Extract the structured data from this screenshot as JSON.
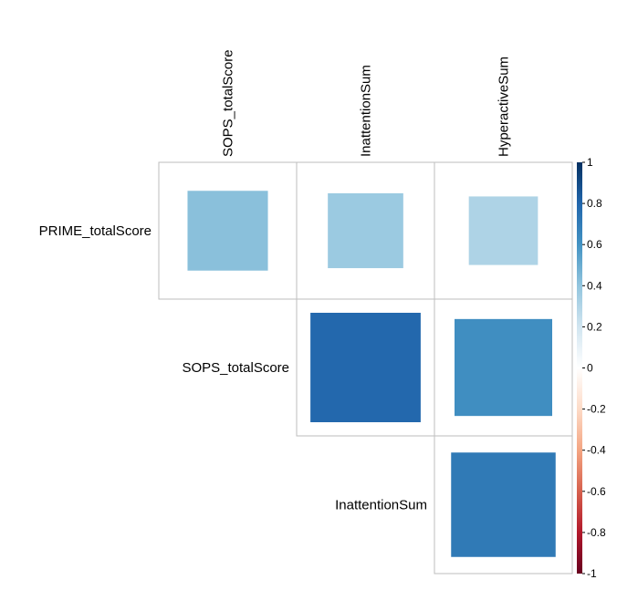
{
  "chart_data": {
    "type": "heatmap",
    "subtype": "correlation-matrix-upper-square",
    "row_labels": [
      "PRIME_totalScore",
      "SOPS_totalScore",
      "InattentionSum"
    ],
    "col_labels": [
      "SOPS_totalScore",
      "InattentionSum",
      "HyperactiveSum"
    ],
    "cells": [
      {
        "row": 0,
        "col": 0,
        "value": 0.42
      },
      {
        "row": 0,
        "col": 1,
        "value": 0.37
      },
      {
        "row": 0,
        "col": 2,
        "value": 0.31
      },
      {
        "row": 1,
        "col": 1,
        "value": 0.79
      },
      {
        "row": 1,
        "col": 2,
        "value": 0.62
      },
      {
        "row": 2,
        "col": 2,
        "value": 0.71
      }
    ],
    "value_range": [
      -1,
      1
    ],
    "colorbar": {
      "ticks": [
        1,
        0.8,
        0.6,
        0.4,
        0.2,
        0,
        -0.2,
        -0.4,
        -0.6,
        -0.8,
        -1
      ],
      "tick_labels": [
        "1",
        "0.8",
        "0.6",
        "0.4",
        "0.2",
        "0",
        "-0.2",
        "-0.4",
        "-0.6",
        "-0.8",
        "-1"
      ],
      "placement": "right"
    },
    "palette": [
      "#67001F",
      "#B2182B",
      "#D6604D",
      "#F4A582",
      "#FDDBC7",
      "#FFFFFF",
      "#D1E5F0",
      "#92C5DE",
      "#4393C3",
      "#2166AC",
      "#053061"
    ],
    "grid_color": "#BEBEBE"
  }
}
